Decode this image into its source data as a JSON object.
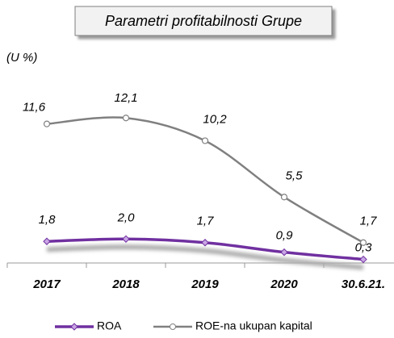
{
  "chart_data": {
    "type": "line",
    "title": "Parametri profitabilnosti Grupe",
    "subtitle": "(U %)",
    "categories": [
      "2017",
      "2018",
      "2019",
      "2020",
      "30.6.21."
    ],
    "ylim": [
      0,
      14
    ],
    "series": [
      {
        "name": "ROA",
        "color": "#7030a0",
        "values": [
          1.8,
          2.0,
          1.7,
          0.9,
          0.3
        ],
        "value_labels": [
          "1,8",
          "2,0",
          "1,7",
          "0,9",
          "0,3"
        ]
      },
      {
        "name": "ROE-na ukupan kapital",
        "color": "#808080",
        "values": [
          11.6,
          12.1,
          10.2,
          5.5,
          1.7
        ],
        "value_labels": [
          "11,6",
          "12,1",
          "10,2",
          "5,5",
          "1,7"
        ]
      }
    ]
  }
}
